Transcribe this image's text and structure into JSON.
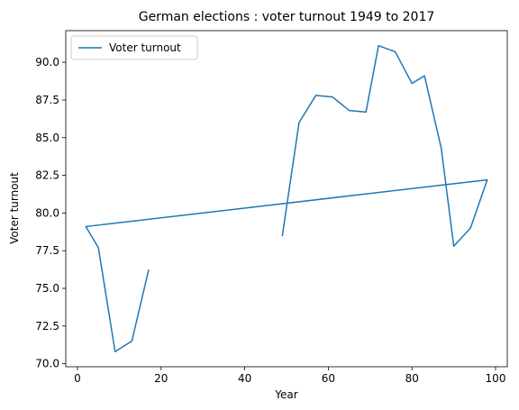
{
  "chart_data": {
    "type": "line",
    "title": "German elections : voter turnout 1949 to 2017",
    "xlabel": "Year",
    "ylabel": "Voter turnout",
    "xlim": [
      -2.8,
      102.8
    ],
    "ylim": [
      69.8,
      92.1
    ],
    "xticks": [
      0,
      20,
      40,
      60,
      80,
      100
    ],
    "yticks": [
      70.0,
      72.5,
      75.0,
      77.5,
      80.0,
      82.5,
      85.0,
      87.5,
      90.0
    ],
    "ytick_labels": [
      "70.0",
      "72.5",
      "75.0",
      "77.5",
      "80.0",
      "82.5",
      "85.0",
      "87.5",
      "90.0"
    ],
    "grid": false,
    "legend_position": "upper-left",
    "series": [
      {
        "name": "Voter turnout",
        "color": "#1f77b4",
        "x": [
          49,
          53,
          57,
          61,
          65,
          69,
          72,
          76,
          80,
          83,
          87,
          90,
          94,
          98,
          2,
          5,
          9,
          13,
          17
        ],
        "y": [
          78.5,
          86.0,
          87.8,
          87.7,
          86.8,
          86.7,
          91.1,
          90.7,
          88.6,
          89.1,
          84.3,
          77.8,
          79.0,
          82.2,
          79.1,
          77.7,
          70.8,
          71.5,
          76.2
        ]
      }
    ]
  }
}
